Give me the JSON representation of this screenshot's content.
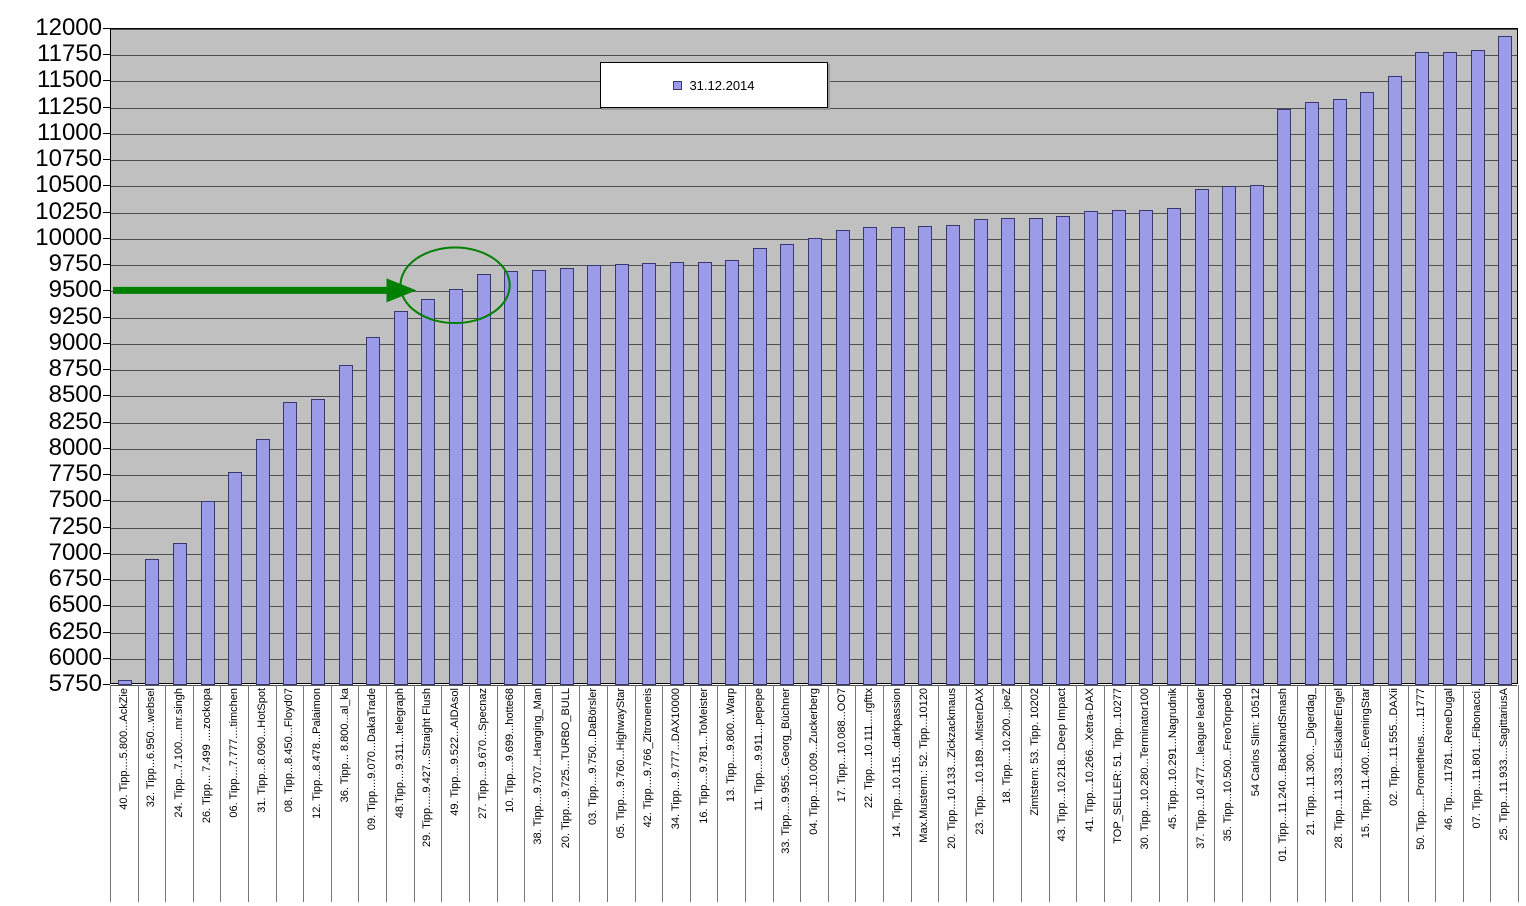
{
  "chart_data": {
    "type": "bar",
    "title": "",
    "legend": {
      "label": "31.12.2014",
      "position": "top-center"
    },
    "ylim": [
      5750,
      12000
    ],
    "ytick_step": 250,
    "grid": true,
    "categories": [
      "40. Tipp....5.800...AckZie",
      "32. Tipp...6.950...websel",
      "24. Tipp...7.100....mr.singh",
      "26. Tipp... 7.499 ....zockopa",
      "06. Tipp....7.777....timchen",
      "31. Tipp...8.090...HotSpot",
      "08. Tipp...8.450...Floyd07",
      "12. Tipp...8.478...Palaimon",
      "36. Tipp... 8.800...al_ka",
      "09. Tipp....9.070...DakaTrade",
      "48.Tipp....9.311...telegraph",
      "29. Tipp.....9.427...Straight Flush",
      "49. Tipp....9.522...AIDAsol",
      "27. Tipp....9.670...Specnaz",
      "10. Tipp....9.699...hotte68",
      "38. Tipp....9.707...Hanging_Man",
      "20. Tipp....9.725...TURBO_BULL",
      "03. Tipp....9.750...DaBörsler",
      "05. Tipp....9.760...HighwayStar",
      "42. Tipp....9.766_Zitroneneis",
      "34. Tipp....9.777...DAX10000",
      "16. Tipp....9.781...ToMeister",
      "13. Tipp....9.800...Warp",
      "11. Tipp....9.911...pepepe",
      "33. Tipp....9.955...Georg_Büchner",
      "04. Tipp...10.009...Zuckerberg",
      "17. Tipp...10.088...OO7",
      "22. Tipp....10.111....rgfttx",
      "14. Tipp...10.115...darkpassion",
      "Max.Musterm.: 52. Tipp...10120",
      "20. Tipp...10.133...Zickzackmaus",
      "23. Tipp....10.189...MisterDAX",
      "18. Tipp....10.200...joeZ",
      "Zimtstern: 53. Tipp. 10202",
      "43. Tipp...10.218...Deep Impact",
      "41. Tipp...10.266...Xetra-DAX",
      "TOP_SELLER: 51. Tipp...10277",
      "30. Tipp...10.280...Terminator100",
      "45. Tipp...10.291...Nagrudnik",
      "37. Tipp...10.477....league leader",
      "35. Tipp...10.500...FreoTorpedo",
      "54 Carlos Slim: 10512",
      "01. Tipp...11.240...BackhandSmash",
      "21. Tipp...11.300..._Digerdag_",
      "28. Tipp...11.333...EiskalterEngel",
      "15. Tipp...11.400...EveningStar",
      "02. Tipp...11.555...DAXii",
      "50. Tipp.....Prometheus......11777",
      "46. Tip.....11781...ReneDugal",
      "07. Tipp...11.801...Fibonacci.",
      "25. Tipp...11.933....SagittariusA"
    ],
    "values": [
      5800,
      6950,
      7100,
      7499,
      7777,
      8090,
      8450,
      8478,
      8800,
      9070,
      9311,
      9427,
      9522,
      9670,
      9699,
      9707,
      9725,
      9750,
      9760,
      9766,
      9777,
      9781,
      9800,
      9911,
      9955,
      10009,
      10088,
      10111,
      10115,
      10120,
      10133,
      10189,
      10200,
      10202,
      10218,
      10266,
      10277,
      10280,
      10291,
      10477,
      10500,
      10512,
      11240,
      11300,
      11333,
      11400,
      11555,
      11777,
      11781,
      11801,
      11933
    ],
    "colors": {
      "bar_fill": "#9B9BE8",
      "bar_border": "#38386E",
      "plot_bg": "#C0C0C0",
      "gridline": "#4f4f4f",
      "annotation_green": "#008000"
    }
  },
  "annotations": {
    "arrow_value": 9500,
    "ellipse_category_span": [
      11,
      13
    ],
    "description_color": "#008000"
  }
}
